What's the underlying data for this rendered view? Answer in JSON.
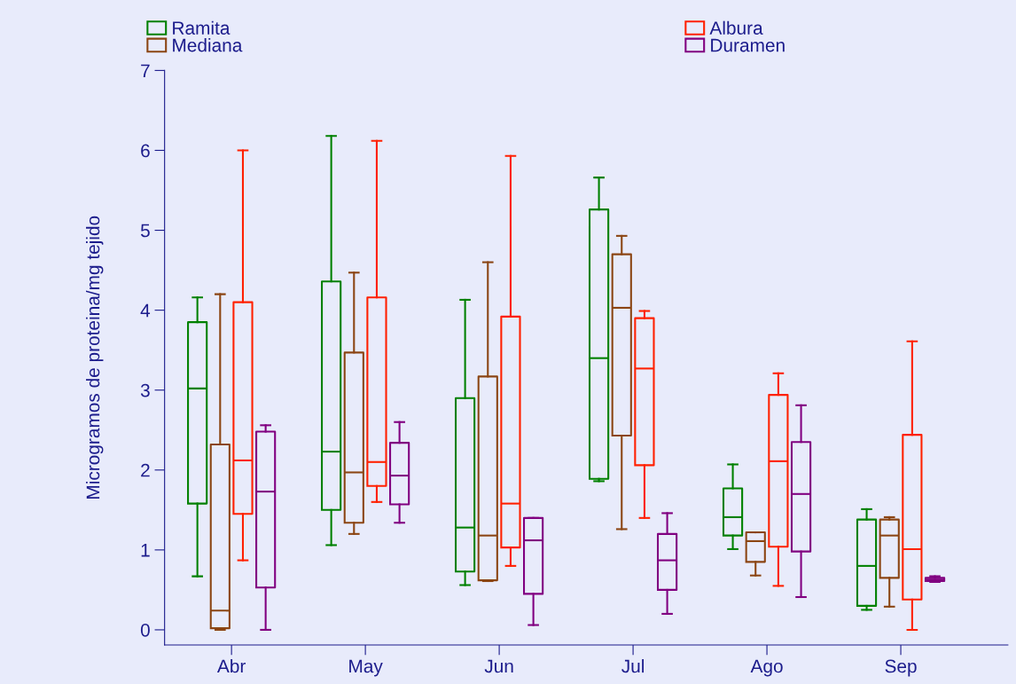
{
  "chart_data": {
    "type": "box",
    "ylabel": "Microgramos de proteina/mg tejido",
    "categories": [
      "Abr",
      "May",
      "Jun",
      "Jul",
      "Ago",
      "Sep"
    ],
    "ylim": [
      -0.19,
      7
    ],
    "yticks": [
      0,
      1,
      2,
      3,
      4,
      5,
      6,
      7
    ],
    "grid": false,
    "legend": "top",
    "series": [
      {
        "name": "Ramita",
        "color": "#008000",
        "boxes": [
          {
            "low": 0.67,
            "q1": 1.58,
            "median": 3.02,
            "q3": 3.85,
            "high": 4.16
          },
          {
            "low": 1.06,
            "q1": 1.5,
            "median": 2.23,
            "q3": 4.36,
            "high": 6.18
          },
          {
            "low": 0.56,
            "q1": 0.73,
            "median": 1.28,
            "q3": 2.9,
            "high": 4.13
          },
          {
            "low": 1.86,
            "q1": 1.89,
            "median": 3.4,
            "q3": 5.26,
            "high": 5.66
          },
          {
            "low": 1.01,
            "q1": 1.18,
            "median": 1.41,
            "q3": 1.77,
            "high": 2.07
          },
          {
            "low": 0.25,
            "q1": 0.3,
            "median": 0.8,
            "q3": 1.38,
            "high": 1.51
          }
        ]
      },
      {
        "name": "Mediana",
        "color": "#8b4513",
        "boxes": [
          {
            "low": 0.0,
            "q1": 0.02,
            "median": 0.24,
            "q3": 2.32,
            "high": 4.2
          },
          {
            "low": 1.2,
            "q1": 1.34,
            "median": 1.97,
            "q3": 3.47,
            "high": 4.47
          },
          {
            "low": 0.61,
            "q1": 0.62,
            "median": 1.18,
            "q3": 3.17,
            "high": 4.6
          },
          {
            "low": 1.26,
            "q1": 2.43,
            "median": 4.03,
            "q3": 4.7,
            "high": 4.93
          },
          {
            "low": 0.68,
            "q1": 0.85,
            "median": 1.11,
            "q3": 1.22,
            "high": 1.22
          },
          {
            "low": 0.29,
            "q1": 0.65,
            "median": 1.18,
            "q3": 1.38,
            "high": 1.41
          }
        ]
      },
      {
        "name": "Albura",
        "color": "#ff2000",
        "boxes": [
          {
            "low": 0.87,
            "q1": 1.45,
            "median": 2.12,
            "q3": 4.1,
            "high": 6.0
          },
          {
            "low": 1.6,
            "q1": 1.8,
            "median": 2.1,
            "q3": 4.16,
            "high": 6.12
          },
          {
            "low": 0.8,
            "q1": 1.03,
            "median": 1.58,
            "q3": 3.92,
            "high": 5.93
          },
          {
            "low": 1.4,
            "q1": 2.06,
            "median": 3.27,
            "q3": 3.9,
            "high": 3.99
          },
          {
            "low": 0.55,
            "q1": 1.04,
            "median": 2.11,
            "q3": 2.94,
            "high": 3.21
          },
          {
            "low": 0.0,
            "q1": 0.38,
            "median": 1.01,
            "q3": 2.44,
            "high": 3.61
          }
        ]
      },
      {
        "name": "Duramen",
        "color": "#800080",
        "boxes": [
          {
            "low": 0.0,
            "q1": 0.53,
            "median": 1.73,
            "q3": 2.48,
            "high": 2.56
          },
          {
            "low": 1.34,
            "q1": 1.57,
            "median": 1.93,
            "q3": 2.34,
            "high": 2.6
          },
          {
            "low": 0.06,
            "q1": 0.45,
            "median": 1.12,
            "q3": 1.4,
            "high": 1.4
          },
          {
            "low": 0.2,
            "q1": 0.5,
            "median": 0.87,
            "q3": 1.2,
            "high": 1.46
          },
          {
            "low": 0.41,
            "q1": 0.98,
            "median": 1.7,
            "q3": 2.35,
            "high": 2.81
          },
          {
            "low": 0.6,
            "q1": 0.61,
            "median": 0.63,
            "q3": 0.65,
            "high": 0.67
          }
        ]
      }
    ]
  }
}
